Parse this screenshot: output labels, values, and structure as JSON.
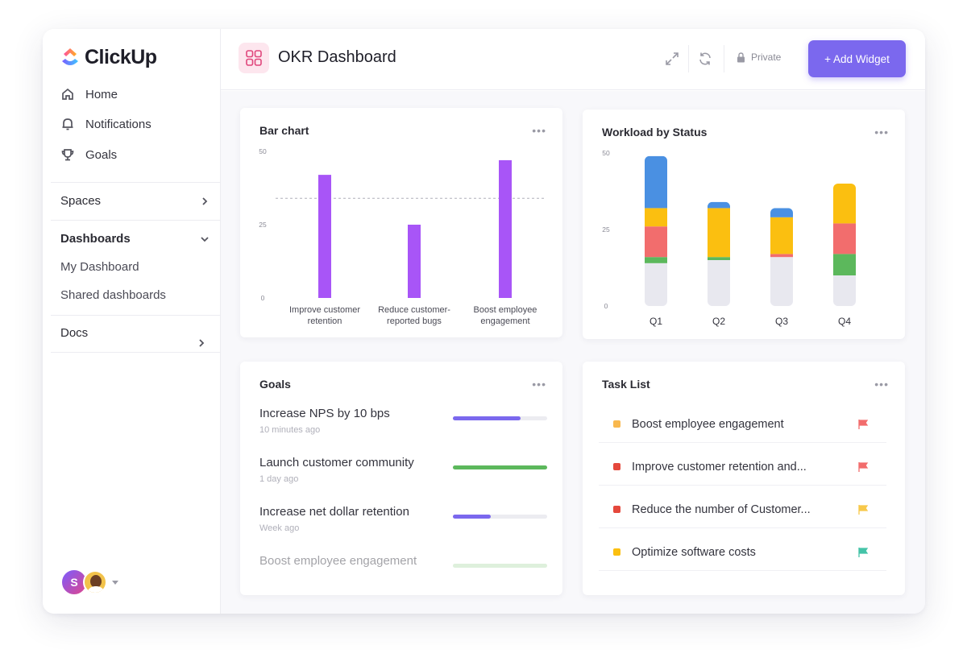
{
  "app": {
    "name": "ClickUp"
  },
  "sidebar": {
    "nav": [
      {
        "label": "Home",
        "icon": "home-icon"
      },
      {
        "label": "Notifications",
        "icon": "bell-icon"
      },
      {
        "label": "Goals",
        "icon": "trophy-icon"
      }
    ],
    "spaces_label": "Spaces",
    "dashboards_label": "Dashboards",
    "dashboard_items": [
      "My Dashboard",
      "Shared dashboards"
    ],
    "docs_label": "Docs",
    "avatar_initial": "S"
  },
  "header": {
    "title": "OKR Dashboard",
    "private_label": "Private",
    "add_widget_label": "+ Add Widget"
  },
  "bar_widget": {
    "title": "Bar chart",
    "more": "•••"
  },
  "workload_widget": {
    "title": "Workload by Status",
    "more": "•••"
  },
  "goals_widget": {
    "title": "Goals",
    "more": "•••",
    "items": [
      {
        "name": "Increase NPS by 10 bps",
        "time": "10 minutes ago",
        "progress": 0.72,
        "color": "#7b68ee"
      },
      {
        "name": "Launch customer community",
        "time": "1 day ago",
        "progress": 1.0,
        "color": "#5cb85c"
      },
      {
        "name": "Increase net dollar retention",
        "time": "Week ago",
        "progress": 0.4,
        "color": "#7b68ee"
      },
      {
        "name": "Boost employee engagement",
        "time": "",
        "progress": 1.0,
        "color": "#b7dfb2"
      }
    ]
  },
  "tasks_widget": {
    "title": "Task List",
    "more": "•••",
    "items": [
      {
        "name": "Boost employee engagement",
        "dot": "#f8b84e",
        "flag": "#f26d6d"
      },
      {
        "name": "Improve customer retention and...",
        "dot": "#e5483c",
        "flag": "#f26d6d"
      },
      {
        "name": "Reduce the number of Customer...",
        "dot": "#e5483c",
        "flag": "#f7c84a"
      },
      {
        "name": "Optimize software costs",
        "dot": "#fbbf10",
        "flag": "#45c3a8"
      }
    ]
  },
  "chart_data": [
    {
      "type": "bar",
      "title": "Bar chart",
      "categories": [
        [
          "Improve customer",
          "retention"
        ],
        [
          "Reduce customer-",
          "reported bugs"
        ],
        [
          "Boost employee",
          "engagement"
        ]
      ],
      "values": [
        42,
        25,
        47
      ],
      "reference_line": 34,
      "ylim": [
        0,
        50
      ],
      "yticks": [
        0,
        25,
        50
      ],
      "color": "#a855f7"
    },
    {
      "type": "bar",
      "stacked": true,
      "title": "Workload by Status",
      "categories": [
        "Q1",
        "Q2",
        "Q3",
        "Q4"
      ],
      "ylim": [
        0,
        50
      ],
      "yticks": [
        0,
        25,
        50
      ],
      "series": [
        {
          "color": "#e8e8ef",
          "values": [
            14,
            15,
            16,
            10
          ]
        },
        {
          "color": "#5cb85c",
          "values": [
            2,
            1,
            0,
            7
          ]
        },
        {
          "color": "#f26d6d",
          "values": [
            10,
            0,
            1,
            10
          ]
        },
        {
          "color": "#fbbf10",
          "values": [
            6,
            16,
            12,
            13
          ]
        },
        {
          "color": "#4a90e2",
          "values": [
            17,
            2,
            3,
            0
          ]
        }
      ]
    }
  ]
}
